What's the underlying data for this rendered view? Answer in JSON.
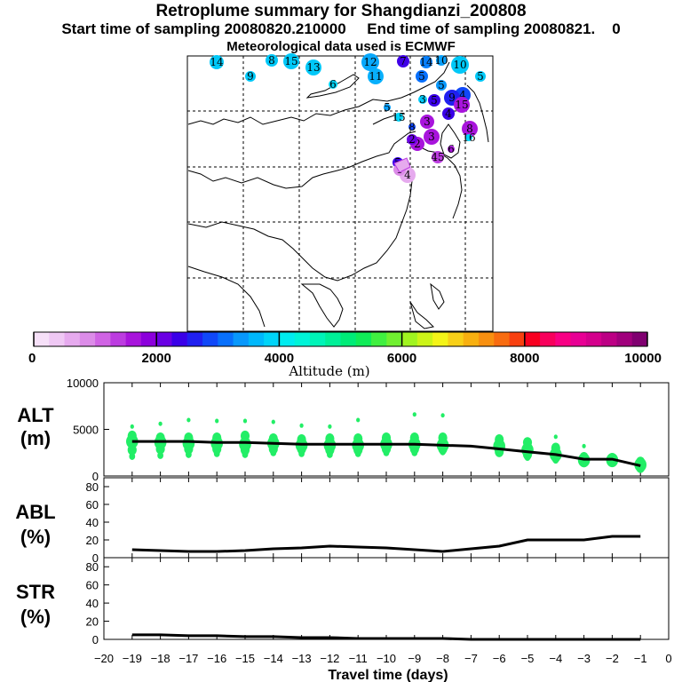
{
  "header": {
    "title": "Retroplume summary for Shangdianzi_200808",
    "subtitle_start": "Start time of sampling 20080820.210000",
    "subtitle_end": "End time of sampling 20080821.",
    "subtitle_end_tail": "0",
    "met_data": "Meteorological data used is ECMWF"
  },
  "colorbar": {
    "title": "Altitude (m)",
    "tick_labels": [
      "0",
      "2000",
      "4000",
      "6000",
      "8000",
      "10000"
    ],
    "colors": [
      "#f6e0f8",
      "#efc8f4",
      "#e6aaee",
      "#dc8ce8",
      "#d064e4",
      "#bc3ce0",
      "#a814dc",
      "#8c00dc",
      "#6a00e4",
      "#3a00e8",
      "#2020f0",
      "#1048f8",
      "#0870fc",
      "#0898fc",
      "#00b8fc",
      "#00d4f8",
      "#00ecf0",
      "#00f4d8",
      "#00f4b8",
      "#00f098",
      "#00ec78",
      "#10ec58",
      "#40f040",
      "#70f030",
      "#a0f420",
      "#ccf418",
      "#f4f418",
      "#f8d018",
      "#f8b010",
      "#f89010",
      "#f86c10",
      "#f84010",
      "#f80020",
      "#f8005c",
      "#f80084",
      "#e80094",
      "#d4008c",
      "#bc0084",
      "#a0007c",
      "#800070"
    ]
  },
  "map_points": [
    {
      "label": "14",
      "color": "#00c8f8"
    },
    {
      "label": "8",
      "color": "#00c8f8"
    },
    {
      "label": "15",
      "color": "#00c8f8"
    },
    {
      "label": "13",
      "color": "#00c8f8"
    },
    {
      "label": "12",
      "color": "#08a8fc"
    },
    {
      "label": "9",
      "color": "#00c8f8"
    },
    {
      "label": "6",
      "color": "#00d4f8"
    },
    {
      "label": "11",
      "color": "#08b0fc"
    },
    {
      "label": "10",
      "color": "#00c8f8"
    },
    {
      "label": "5",
      "color": "#00c8f8"
    },
    {
      "label": "7",
      "color": "#4000e8"
    },
    {
      "label": "14",
      "color": "#0880fc"
    },
    {
      "label": "10",
      "color": "#08a0fc"
    },
    {
      "label": "5",
      "color": "#0870fc"
    },
    {
      "label": "5",
      "color": "#0898fc"
    },
    {
      "label": "4",
      "color": "#1048f8"
    },
    {
      "label": "9",
      "color": "#2020f0"
    },
    {
      "label": "3",
      "color": "#00c8f8"
    },
    {
      "label": "5",
      "color": "#3a00e8"
    },
    {
      "label": "4",
      "color": "#3a00e8"
    },
    {
      "label": "15",
      "color": "#a814dc"
    },
    {
      "label": "5",
      "color": "#08a0fc"
    },
    {
      "label": "15",
      "color": "#00d4f8"
    },
    {
      "label": "8",
      "color": "#1048f8"
    },
    {
      "label": "3",
      "color": "#a814dc"
    },
    {
      "label": "3",
      "color": "#a814dc"
    },
    {
      "label": "8",
      "color": "#a814dc"
    },
    {
      "label": "2",
      "color": "#a814dc"
    },
    {
      "label": "16",
      "color": "#00d4f8"
    },
    {
      "label": "2",
      "color": "#6a00e4"
    },
    {
      "label": "6",
      "color": "#a814dc"
    },
    {
      "label": "5",
      "color": "#3a00e8"
    },
    {
      "label": "45",
      "color": "#bc3ce0"
    },
    {
      "label": "2",
      "color": "#bc3ce0"
    },
    {
      "label": "4",
      "color": "#e6aaee"
    },
    {
      "label": "1",
      "color": "#dc8ce8"
    }
  ],
  "chart_data": [
    {
      "type": "scatter+line",
      "name": "ALT",
      "ylabel": "ALT\n(m)",
      "ylabel_line1": "ALT",
      "ylabel_line2": "(m)",
      "ylim": [
        0,
        10000
      ],
      "yticks": [
        "10000",
        "5000",
        "0"
      ],
      "x": [
        -19,
        -18,
        -17,
        -16,
        -15,
        -14,
        -13,
        -12,
        -11,
        -10,
        -9,
        -8,
        -7,
        -6,
        -5,
        -4,
        -3,
        -2,
        -1
      ],
      "mean_line": [
        3700,
        3700,
        3700,
        3600,
        3600,
        3500,
        3400,
        3400,
        3400,
        3400,
        3400,
        3300,
        3200,
        2900,
        2600,
        2300,
        1800,
        1800,
        1100
      ],
      "percentiles": {
        "p10": [
          2100,
          2200,
          2300,
          2400,
          2300,
          2500,
          2400,
          2300,
          2400,
          2500,
          2500,
          2600,
          null,
          2400,
          2000,
          1700,
          1400,
          1500,
          700
        ],
        "p25": [
          2800,
          2900,
          2900,
          2900,
          2800,
          2900,
          2900,
          2800,
          2800,
          2900,
          2900,
          2900,
          null,
          2600,
          2300,
          2000,
          1500,
          1600,
          900
        ],
        "p50": [
          3700,
          3600,
          3500,
          3500,
          3400,
          3500,
          3300,
          3300,
          3300,
          3400,
          3400,
          3300,
          null,
          3200,
          2800,
          2300,
          1700,
          1700,
          1200
        ],
        "p75": [
          4300,
          4100,
          4100,
          4100,
          4300,
          4000,
          3900,
          4000,
          4000,
          4100,
          4100,
          4100,
          null,
          3900,
          3600,
          3000,
          2000,
          1900,
          1500
        ],
        "p90": [
          5300,
          5600,
          6000,
          5900,
          5900,
          5800,
          5400,
          5300,
          6000,
          null,
          6600,
          6500,
          null,
          null,
          null,
          4200,
          3200,
          null,
          null
        ]
      }
    },
    {
      "type": "line",
      "name": "ABL",
      "ylabel_line1": "ABL",
      "ylabel_line2": "(%)",
      "ylim": [
        0,
        90
      ],
      "yticks": [
        "80",
        "60",
        "40",
        "20",
        "0"
      ],
      "x": [
        -19,
        -18,
        -17,
        -16,
        -15,
        -14,
        -13,
        -12,
        -11,
        -10,
        -9,
        -8,
        -7,
        -6,
        -5,
        -4,
        -3,
        -2,
        -1
      ],
      "values": [
        9,
        8,
        7,
        7,
        8,
        10,
        11,
        13,
        12,
        11,
        9,
        7,
        10,
        13,
        20,
        20,
        20,
        24,
        24
      ]
    },
    {
      "type": "line",
      "name": "STR",
      "ylabel_line1": "STR",
      "ylabel_line2": "(%)",
      "ylim": [
        0,
        90
      ],
      "yticks": [
        "80",
        "60",
        "40",
        "20",
        "0"
      ],
      "x": [
        -19,
        -18,
        -17,
        -16,
        -15,
        -14,
        -13,
        -12,
        -11,
        -10,
        -9,
        -8,
        -7,
        -6,
        -5,
        -4,
        -3,
        -2,
        -1
      ],
      "values": [
        5,
        5,
        4,
        4,
        3,
        3,
        2,
        2,
        1,
        1,
        1,
        1,
        0,
        0,
        0,
        0,
        0,
        0,
        0
      ]
    }
  ],
  "xaxis": {
    "label": "Travel time (days)",
    "ticks": [
      "-20",
      "-19",
      "-18",
      "-17",
      "-16",
      "-15",
      "-14",
      "-13",
      "-12",
      "-11",
      "-10",
      "-9",
      "-8",
      "-7",
      "-6",
      "-5",
      "-4",
      "-3",
      "-2",
      "-1",
      "0"
    ],
    "xlim": [
      -20,
      0
    ]
  }
}
